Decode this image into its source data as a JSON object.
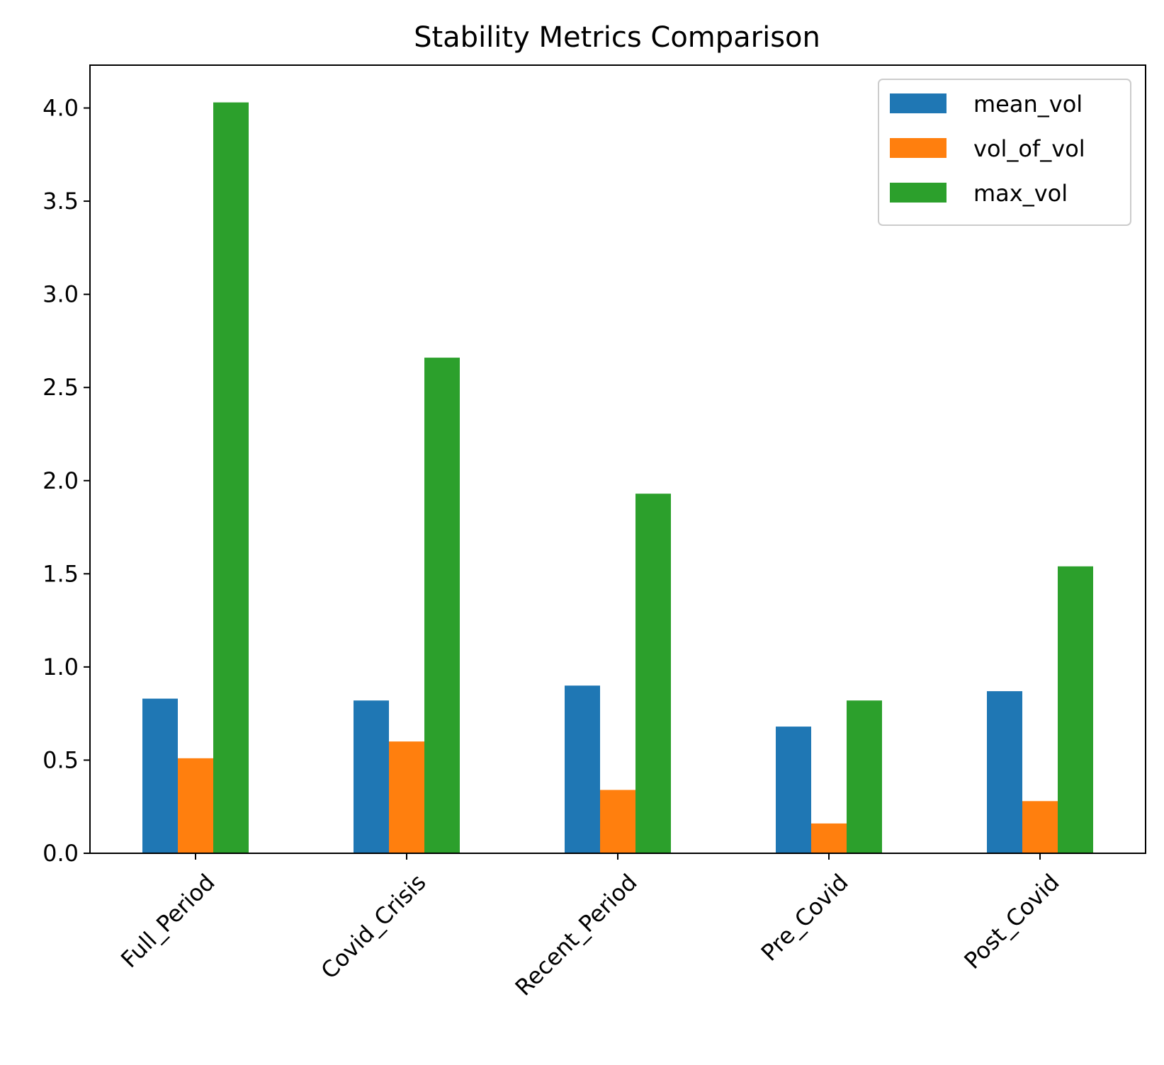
{
  "chart_data": {
    "type": "bar",
    "title": "Stability Metrics Comparison",
    "xlabel": "",
    "ylabel": "",
    "categories": [
      "Full_Period",
      "Covid_Crisis",
      "Recent_Period",
      "Pre_Covid",
      "Post_Covid"
    ],
    "series": [
      {
        "name": "mean_vol",
        "color": "#1f77b4",
        "values": [
          0.83,
          0.82,
          0.9,
          0.68,
          0.87
        ]
      },
      {
        "name": "vol_of_vol",
        "color": "#ff7f0e",
        "values": [
          0.51,
          0.6,
          0.34,
          0.16,
          0.28
        ]
      },
      {
        "name": "max_vol",
        "color": "#2ca02c",
        "values": [
          4.03,
          2.66,
          1.93,
          0.82,
          1.54
        ]
      }
    ],
    "ylim": [
      0,
      4.23
    ],
    "yticks": [
      "0.0",
      "0.5",
      "1.0",
      "1.5",
      "2.0",
      "2.5",
      "3.0",
      "3.5",
      "4.0"
    ],
    "legend_position": "top-right",
    "x_tick_rotation": "45 degrees",
    "grid": false
  }
}
